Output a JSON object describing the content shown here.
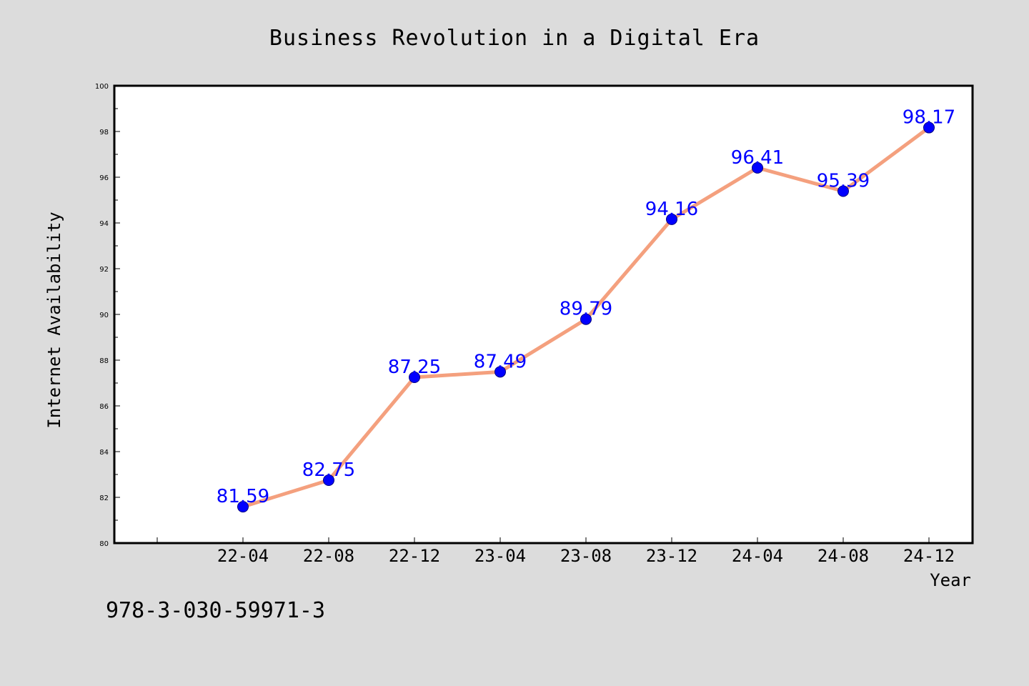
{
  "chart_data": {
    "type": "line",
    "title": "Business Revolution in a Digital Era",
    "xlabel": "Year",
    "ylabel": "Internet Availability",
    "categories": [
      "22-04",
      "22-08",
      "22-12",
      "23-04",
      "23-08",
      "23-12",
      "24-04",
      "24-08",
      "24-12"
    ],
    "series": [
      {
        "values": [
          81.59,
          82.75,
          87.25,
          87.49,
          89.79,
          94.16,
          96.41,
          95.39,
          98.17
        ]
      }
    ],
    "data_labels": [
      "81.59",
      "82.75",
      "87.25",
      "87.49",
      "89.79",
      "94.16",
      "96.41",
      "95.39",
      "98.17"
    ],
    "ylim": [
      80,
      100
    ],
    "yticks": [
      "80",
      "82",
      "84",
      "86",
      "88",
      "90",
      "92",
      "94",
      "96",
      "98",
      "100"
    ],
    "grid": false,
    "line_color": "#f4a07e",
    "marker_color": "#0000ff",
    "label_color": "#0000ff",
    "background_color": "#dcdcdc"
  },
  "caption": "978-3-030-59971-3"
}
